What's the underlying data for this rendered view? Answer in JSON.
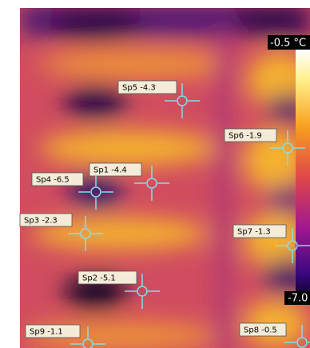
{
  "scale": {
    "max_label": "-0.5 °C",
    "min_label": "-7.0"
  },
  "spots": [
    {
      "label": "Sp5 -4.3"
    },
    {
      "label": "Sp6 -1.9"
    },
    {
      "label": "Sp1 -4.4"
    },
    {
      "label": "Sp4 -6.5"
    },
    {
      "label": "Sp3 -2.3"
    },
    {
      "label": "Sp7 -1.3"
    },
    {
      "label": "Sp2 -5.1"
    },
    {
      "label": "Sp9 -1.1"
    },
    {
      "label": "Sp8 -0.5"
    }
  ]
}
